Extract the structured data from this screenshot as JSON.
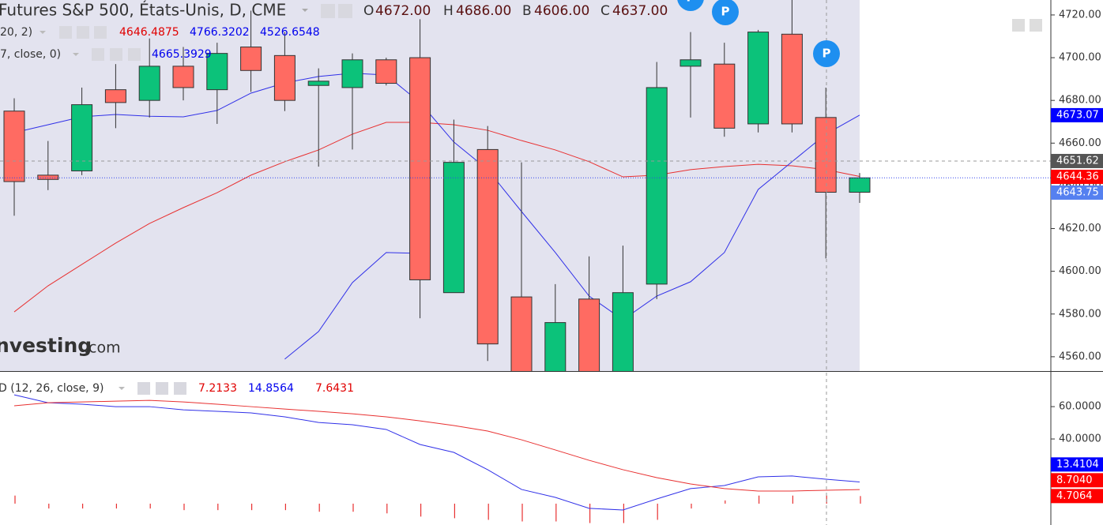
{
  "header": {
    "title": "Futures S&P 500, États-Unis, D, CME",
    "ohlc": [
      {
        "key": "O",
        "value": "4672.00"
      },
      {
        "key": "H",
        "value": "4686.00"
      },
      {
        "key": "B",
        "value": "4606.00"
      },
      {
        "key": "C",
        "value": "4637.00"
      }
    ]
  },
  "indicator_legends": [
    {
      "label": "20, 2)",
      "values": [
        {
          "text": "4646.4875",
          "color": "#e00000"
        },
        {
          "text": "4766.3202",
          "color": "#0000ee"
        },
        {
          "text": "4526.6548",
          "color": "#0000ee"
        }
      ]
    },
    {
      "label": "7, close, 0)",
      "values": [
        {
          "text": "4665.3929",
          "color": "#0000ee"
        }
      ]
    },
    {
      "label": "D (12, 26, close, 9)",
      "values": [
        {
          "text": "7.2133",
          "color": "#e00000"
        },
        {
          "text": "14.8564",
          "color": "#0000ee"
        },
        {
          "text": "7.6431",
          "color": "#e00000"
        }
      ]
    }
  ],
  "logo": {
    "name": "nvesting",
    "suffix": ".com"
  },
  "markers": [
    "P",
    "P",
    "P"
  ],
  "chart_data": [
    {
      "type": "candlestick",
      "open": [
        4675,
        4645,
        4647,
        4685,
        4680,
        4696,
        4685,
        4705,
        4701,
        4687,
        4686,
        4699,
        4700,
        4590,
        4657,
        4588,
        4550,
        4587,
        4552,
        4594,
        4696,
        4697,
        4669,
        4711,
        4672,
        4637
      ],
      "high": [
        4681,
        4661,
        4686,
        4697,
        4709,
        4705,
        4707,
        4722,
        4712,
        4695,
        4702,
        4700,
        4718,
        4671,
        4668,
        4651,
        4594,
        4607,
        4612,
        4698,
        4712,
        4707,
        4713,
        4727,
        4686,
        4646
      ],
      "low": [
        4626,
        4638,
        4645,
        4667,
        4672,
        4680,
        4669,
        4684,
        4675,
        4649,
        4657,
        4687,
        4578,
        4590,
        4558,
        4540,
        4540,
        4545,
        4548,
        4587,
        4672,
        4663,
        4665,
        4665,
        4606,
        4632
      ],
      "close": [
        4642,
        4643,
        4678,
        4679,
        4696,
        4686,
        4702,
        4694,
        4680,
        4689,
        4699,
        4688,
        4596,
        4651,
        4566,
        4550,
        4576,
        4552,
        4590,
        4686,
        4699,
        4667,
        4712,
        4669,
        4637,
        4643.75
      ],
      "up_color": "#0cc27a",
      "down_color": "#ff6b62",
      "ylim": [
        4553.3,
        4727
      ],
      "yticks": [
        {
          "value": 4560,
          "label": "4560.00"
        },
        {
          "value": 4580,
          "label": "4580.00"
        },
        {
          "value": 4600,
          "label": "4600.00"
        },
        {
          "value": 4620,
          "label": "4620.00"
        },
        {
          "value": 4640,
          "label": "4640.00"
        },
        {
          "value": 4660,
          "label": "4660.00"
        },
        {
          "value": 4680,
          "label": "4680.00"
        },
        {
          "value": 4700,
          "label": "4700.00"
        },
        {
          "value": 4720,
          "label": "4720.00"
        }
      ],
      "overlays": [
        {
          "color": "#e83030",
          "values": [
            4581.0,
            4593.2,
            4603.2,
            4613.2,
            4622.4,
            4629.8,
            4636.8,
            4645.0,
            4651.3,
            4656.8,
            4664.2,
            4669.7,
            4669.7,
            4668.6,
            4666.0,
            4661.2,
            4656.8,
            4651.3,
            4644.2,
            4645.0,
            4647.6,
            4649.0,
            4650.1,
            4649.4,
            4647.6,
            4644.4
          ]
        },
        {
          "color": "#3030e8",
          "values": [
            4664.9,
            4668.6,
            4672.3,
            4673.4,
            4672.6,
            4672.3,
            4675.3,
            4683.4,
            4688.2,
            4691.2,
            4692.7,
            4691.9,
            4679.0,
            4660.5,
            4647.6,
            4628.0,
            4608.8,
            4588.4,
            4577.3,
            4588.4,
            4595.1,
            4608.8,
            4638.3,
            4651.3,
            4664.2,
            4673.1
          ]
        },
        {
          "color": "#3030e8",
          "values": [
            null,
            null,
            null,
            null,
            null,
            null,
            null,
            null,
            4558.9,
            4571.8,
            4594.7,
            4608.8,
            4608.4,
            null,
            null,
            null,
            null,
            null,
            null,
            null,
            null,
            null,
            null,
            null,
            null,
            null
          ]
        }
      ],
      "price_tags": [
        {
          "value": 4673.07,
          "label": "4673.07",
          "color": "#0000ff"
        },
        {
          "value": 4651.62,
          "label": "4651.62",
          "color": "#555555"
        },
        {
          "value": 4644.36,
          "label": "4644.36",
          "color": "#ff0000"
        },
        {
          "value": 4643.75,
          "label": "4643.75",
          "color": "#5580f0"
        }
      ]
    },
    {
      "type": "macd",
      "ylim": [
        -13.2,
        82
      ],
      "yticks": [
        {
          "value": 40,
          "label": "40.0000"
        },
        {
          "value": 60,
          "label": "60.0000"
        }
      ],
      "series": [
        {
          "color": "#3030e8",
          "values": [
            67.3,
            62.4,
            61.5,
            60,
            60,
            58,
            57.1,
            56.1,
            53.7,
            50.2,
            48.8,
            45.9,
            36.6,
            31.7,
            21,
            8.8,
            3.9,
            -2.9,
            -3.9,
            2.9,
            9.3,
            11.2,
            16.6,
            17.1,
            15.1,
            13.4
          ]
        },
        {
          "color": "#e83030",
          "values": [
            60.5,
            62.4,
            62.9,
            63.4,
            63.9,
            62.9,
            61.5,
            60,
            58.5,
            57.1,
            55.6,
            53.7,
            51.2,
            48.3,
            44.9,
            39.5,
            33.2,
            26.8,
            21,
            16.1,
            12.2,
            9.3,
            7.8,
            7.8,
            8.3,
            8.7
          ]
        }
      ],
      "histogram": {
        "color": "#e83030",
        "values": [
          5,
          -3,
          -3,
          -3,
          -3,
          -4,
          -4,
          -4,
          -4,
          -5,
          -5,
          -6,
          -8,
          -9,
          -10,
          -11,
          -11,
          -12,
          -12,
          -10,
          -3,
          2,
          5,
          5,
          5,
          4.7
        ]
      },
      "value_tags": [
        {
          "value": 13.4104,
          "label": "13.4104",
          "color": "#0000ff"
        },
        {
          "value": 8.704,
          "label": "8.7040",
          "color": "#ff0000"
        },
        {
          "value": 4.7064,
          "label": "4.7064",
          "color": "#ff0000"
        }
      ]
    }
  ]
}
